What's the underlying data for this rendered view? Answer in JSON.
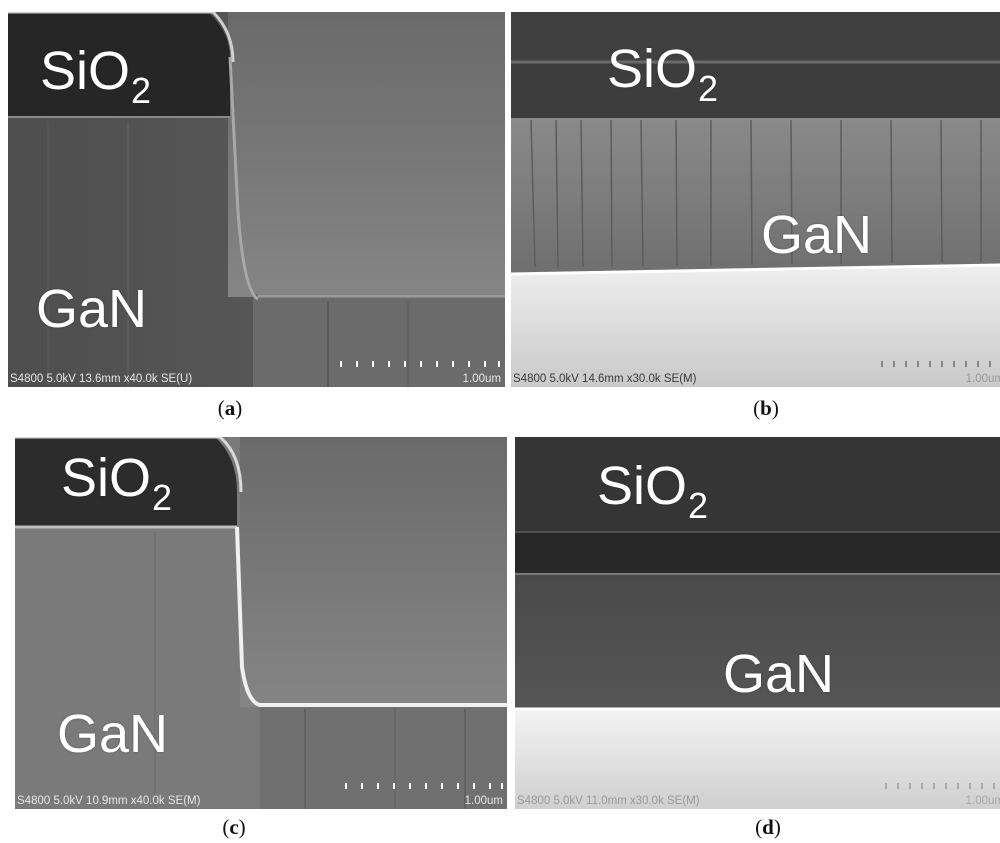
{
  "panels": {
    "a": {
      "material_top": "SiO",
      "material_top_sub": "2",
      "material_bottom": "GaN",
      "info": "S4800 5.0kV 13.6mm x40.0k SE(U)",
      "scale": "1.00um",
      "caption_letter": "a"
    },
    "b": {
      "material_top": "SiO",
      "material_top_sub": "2",
      "material_bottom": "GaN",
      "info": "S4800 5.0kV 14.6mm x30.0k SE(M)",
      "scale": "1.00um",
      "caption_letter": "b"
    },
    "c": {
      "material_top": "SiO",
      "material_top_sub": "2",
      "material_bottom": "GaN",
      "info": "S4800 5.0kV 10.9mm x40.0k SE(M)",
      "scale": "1.00um",
      "caption_letter": "c"
    },
    "d": {
      "material_top": "SiO",
      "material_top_sub": "2",
      "material_bottom": "GaN",
      "info": "S4800 5.0kV 11.0mm x30.0k SE(M)",
      "scale": "1.00um",
      "caption_letter": "d"
    }
  },
  "caption_open": "(",
  "caption_close": ")"
}
